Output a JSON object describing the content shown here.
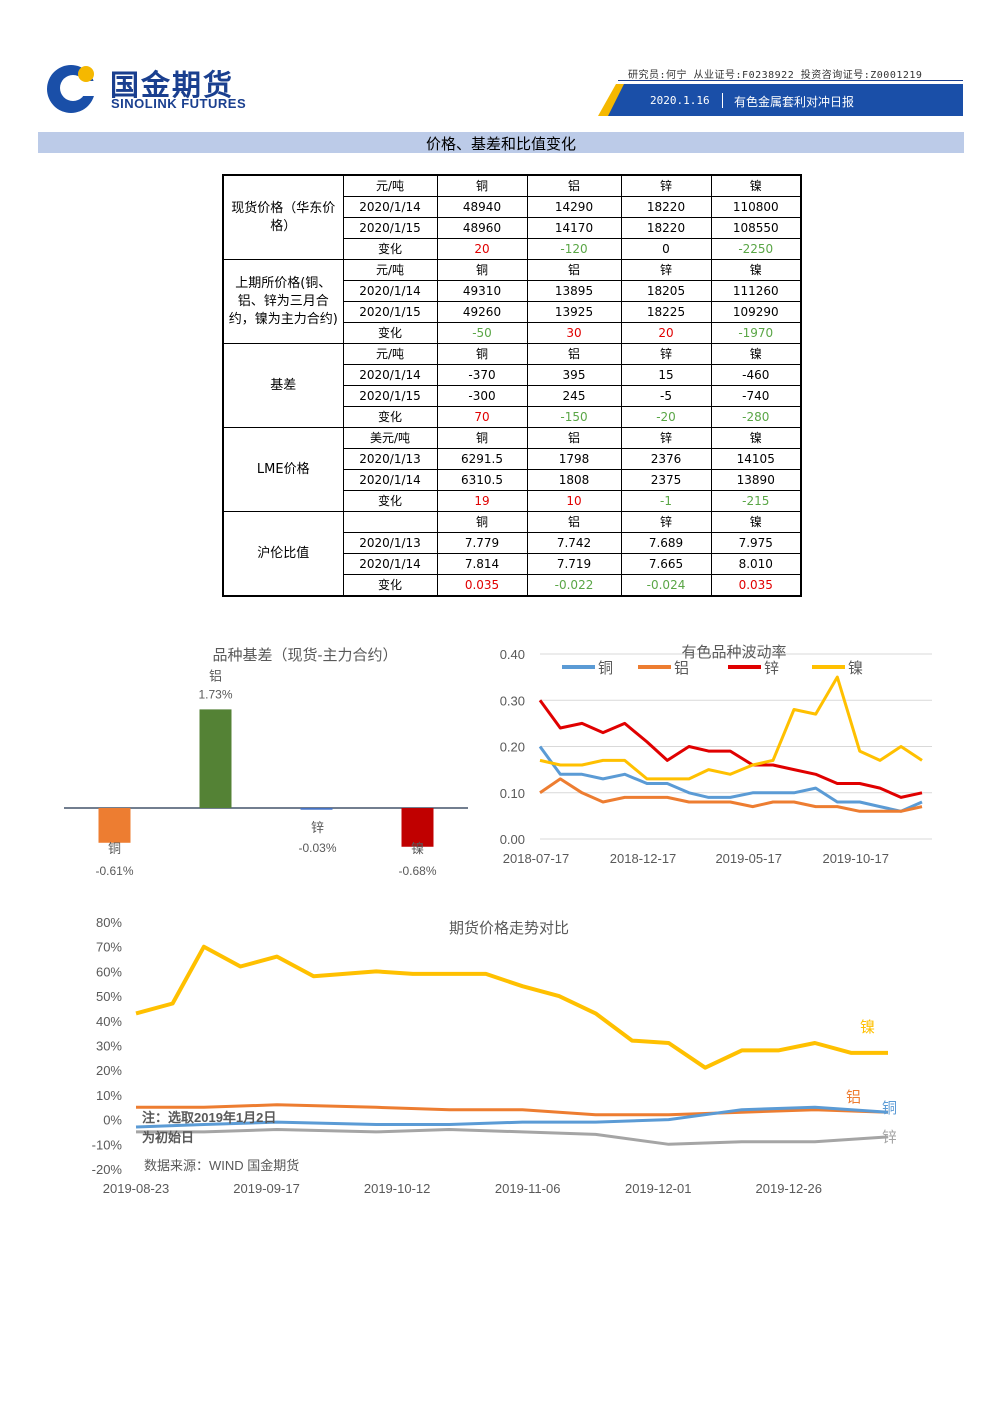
{
  "header": {
    "brand_cn": "国金期货",
    "brand_en": "SINOLINK FUTURES",
    "analyst_line": "研究员:何宁  从业证号:F0238922  投资咨询证号:Z0001219",
    "date": "2020.1.16",
    "report_title": "有色金属套利对冲日报",
    "colors": {
      "brand": "#1a3f8f",
      "accent_yellow": "#f5b800"
    }
  },
  "section": {
    "title": "价格、基差和比值变化"
  },
  "table": {
    "groups": [
      {
        "label": "现货价格（华东价格）",
        "rows": [
          [
            "元/吨",
            "铜",
            "铝",
            "锌",
            "镍"
          ],
          [
            "2020/1/14",
            "48940",
            "14290",
            "18220",
            "110800"
          ],
          [
            "2020/1/15",
            "48960",
            "14170",
            "18220",
            "108550"
          ],
          [
            "变化",
            "20",
            "-120",
            "0",
            "-2250"
          ]
        ]
      },
      {
        "label": "上期所价格(铜、铝、锌为三月合约，镍为主力合约)",
        "rows": [
          [
            "元/吨",
            "铜",
            "铝",
            "锌",
            "镍"
          ],
          [
            "2020/1/14",
            "49310",
            "13895",
            "18205",
            "111260"
          ],
          [
            "2020/1/15",
            "49260",
            "13925",
            "18225",
            "109290"
          ],
          [
            "变化",
            "-50",
            "30",
            "20",
            "-1970"
          ]
        ]
      },
      {
        "label": "基差",
        "rows": [
          [
            "元/吨",
            "铜",
            "铝",
            "锌",
            "镍"
          ],
          [
            "2020/1/14",
            "-370",
            "395",
            "15",
            "-460"
          ],
          [
            "2020/1/15",
            "-300",
            "245",
            "-5",
            "-740"
          ],
          [
            "变化",
            "70",
            "-150",
            "-20",
            "-280"
          ]
        ]
      },
      {
        "label": "LME价格",
        "rows": [
          [
            "美元/吨",
            "铜",
            "铝",
            "锌",
            "镍"
          ],
          [
            "2020/1/13",
            "6291.5",
            "1798",
            "2376",
            "14105"
          ],
          [
            "2020/1/14",
            "6310.5",
            "1808",
            "2375",
            "13890"
          ],
          [
            "变化",
            "19",
            "10",
            "-1",
            "-215"
          ]
        ]
      },
      {
        "label": "沪伦比值",
        "rows": [
          [
            "",
            "铜",
            "铝",
            "锌",
            "镍"
          ],
          [
            "2020/1/13",
            "7.779",
            "7.742",
            "7.689",
            "7.975"
          ],
          [
            "2020/1/14",
            "7.814",
            "7.719",
            "7.665",
            "8.010"
          ],
          [
            "变化",
            "0.035",
            "-0.022",
            "-0.024",
            "0.035"
          ]
        ]
      }
    ]
  },
  "chart_data": [
    {
      "type": "bar",
      "title": "品种基差（现货-主力合约）",
      "categories": [
        "铜",
        "铝",
        "锌",
        "镍"
      ],
      "values": [
        -0.61,
        1.73,
        -0.03,
        -0.68
      ],
      "labels": [
        "-0.61%",
        "1.73%",
        "-0.03%",
        "-0.68%"
      ],
      "colors": [
        "#ed7d31",
        "#548235",
        "#4472c4",
        "#c00000"
      ],
      "grid": false
    },
    {
      "type": "line",
      "title": "有色品种波动率",
      "x_ticks": [
        "2018-07-17",
        "2018-12-17",
        "2019-05-17",
        "2019-10-17"
      ],
      "y_ticks": [
        "0.00",
        "0.10",
        "0.20",
        "0.30",
        "0.40"
      ],
      "ylim": [
        0,
        0.4
      ],
      "legend_position": "top",
      "grid": true,
      "series": [
        {
          "name": "铜",
          "color": "#5b9bd5",
          "x": [
            "2018-07-17",
            "2018-08-15",
            "2018-09-15",
            "2018-10-15",
            "2018-11-15",
            "2018-12-17",
            "2019-01-15",
            "2019-02-15",
            "2019-03-15",
            "2019-04-15",
            "2019-05-17",
            "2019-06-15",
            "2019-07-15",
            "2019-08-15",
            "2019-09-15",
            "2019-10-17",
            "2019-11-15",
            "2019-12-15",
            "2020-01-14"
          ],
          "values": [
            0.2,
            0.14,
            0.14,
            0.13,
            0.14,
            0.12,
            0.12,
            0.1,
            0.09,
            0.09,
            0.1,
            0.1,
            0.1,
            0.11,
            0.08,
            0.08,
            0.07,
            0.06,
            0.08
          ]
        },
        {
          "name": "铝",
          "color": "#ed7d31",
          "x": [
            "2018-07-17",
            "2018-08-15",
            "2018-09-15",
            "2018-10-15",
            "2018-11-15",
            "2018-12-17",
            "2019-01-15",
            "2019-02-15",
            "2019-03-15",
            "2019-04-15",
            "2019-05-17",
            "2019-06-15",
            "2019-07-15",
            "2019-08-15",
            "2019-09-15",
            "2019-10-17",
            "2019-11-15",
            "2019-12-15",
            "2020-01-14"
          ],
          "values": [
            0.1,
            0.13,
            0.1,
            0.08,
            0.09,
            0.09,
            0.09,
            0.08,
            0.08,
            0.08,
            0.07,
            0.08,
            0.08,
            0.07,
            0.07,
            0.06,
            0.06,
            0.06,
            0.07
          ]
        },
        {
          "name": "锌",
          "color": "#e00000",
          "x": [
            "2018-07-17",
            "2018-08-15",
            "2018-09-15",
            "2018-10-15",
            "2018-11-15",
            "2018-12-17",
            "2019-01-15",
            "2019-02-15",
            "2019-03-15",
            "2019-04-15",
            "2019-05-17",
            "2019-06-15",
            "2019-07-15",
            "2019-08-15",
            "2019-09-15",
            "2019-10-17",
            "2019-11-15",
            "2019-12-15",
            "2020-01-14"
          ],
          "values": [
            0.3,
            0.24,
            0.25,
            0.23,
            0.25,
            0.21,
            0.17,
            0.2,
            0.19,
            0.19,
            0.16,
            0.16,
            0.15,
            0.14,
            0.12,
            0.12,
            0.11,
            0.09,
            0.1
          ]
        },
        {
          "name": "镍",
          "color": "#ffc000",
          "x": [
            "2018-07-17",
            "2018-08-15",
            "2018-09-15",
            "2018-10-15",
            "2018-11-15",
            "2018-12-17",
            "2019-01-15",
            "2019-02-15",
            "2019-03-15",
            "2019-04-15",
            "2019-05-17",
            "2019-06-15",
            "2019-07-15",
            "2019-08-15",
            "2019-09-15",
            "2019-10-17",
            "2019-11-15",
            "2019-12-15",
            "2020-01-14"
          ],
          "values": [
            0.17,
            0.16,
            0.16,
            0.17,
            0.17,
            0.13,
            0.13,
            0.13,
            0.15,
            0.14,
            0.16,
            0.17,
            0.28,
            0.27,
            0.35,
            0.19,
            0.17,
            0.2,
            0.17
          ]
        }
      ]
    },
    {
      "type": "line",
      "title": "期货价格走势对比",
      "x_ticks": [
        "2019-08-23",
        "2019-09-17",
        "2019-10-12",
        "2019-11-06",
        "2019-12-01",
        "2019-12-26"
      ],
      "y_ticks": [
        "-20%",
        "-10%",
        "0%",
        "10%",
        "20%",
        "30%",
        "40%",
        "50%",
        "60%",
        "70%",
        "80%"
      ],
      "ylim": [
        -20,
        80
      ],
      "grid": false,
      "annotations": [
        "注：选取2019年1月2日为初始日",
        "数据来源：WIND 国金期货"
      ],
      "series": [
        {
          "name": "镍",
          "color": "#ffc000",
          "x": [
            "2019-08-23",
            "2019-08-30",
            "2019-09-05",
            "2019-09-12",
            "2019-09-19",
            "2019-09-26",
            "2019-10-08",
            "2019-10-15",
            "2019-10-22",
            "2019-10-29",
            "2019-11-05",
            "2019-11-12",
            "2019-11-19",
            "2019-11-26",
            "2019-12-03",
            "2019-12-10",
            "2019-12-17",
            "2019-12-24",
            "2019-12-31",
            "2020-01-07",
            "2020-01-14"
          ],
          "values": [
            43,
            47,
            70,
            62,
            66,
            58,
            60,
            59,
            59,
            59,
            54,
            50,
            43,
            32,
            31,
            21,
            28,
            28,
            31,
            27,
            27
          ]
        },
        {
          "name": "铝",
          "color": "#ed7d31",
          "x": [
            "2019-08-23",
            "2019-09-05",
            "2019-09-19",
            "2019-10-08",
            "2019-10-22",
            "2019-11-05",
            "2019-11-19",
            "2019-12-03",
            "2019-12-17",
            "2019-12-31",
            "2020-01-14"
          ],
          "values": [
            5,
            5,
            6,
            5,
            4,
            4,
            2,
            2,
            3,
            4,
            3
          ]
        },
        {
          "name": "铜",
          "color": "#5b9bd5",
          "x": [
            "2019-08-23",
            "2019-09-05",
            "2019-09-19",
            "2019-10-08",
            "2019-10-22",
            "2019-11-05",
            "2019-11-19",
            "2019-12-03",
            "2019-12-17",
            "2019-12-31",
            "2020-01-14"
          ],
          "values": [
            -3,
            -2,
            -1,
            -2,
            -2,
            -1,
            -1,
            0,
            4,
            5,
            3
          ]
        },
        {
          "name": "锌",
          "color": "#a5a5a5",
          "x": [
            "2019-08-23",
            "2019-09-05",
            "2019-09-19",
            "2019-10-08",
            "2019-10-22",
            "2019-11-05",
            "2019-11-19",
            "2019-12-03",
            "2019-12-17",
            "2019-12-31",
            "2020-01-14"
          ],
          "values": [
            -5,
            -5,
            -4,
            -5,
            -4,
            -5,
            -6,
            -10,
            -9,
            -9,
            -7
          ]
        }
      ]
    }
  ]
}
